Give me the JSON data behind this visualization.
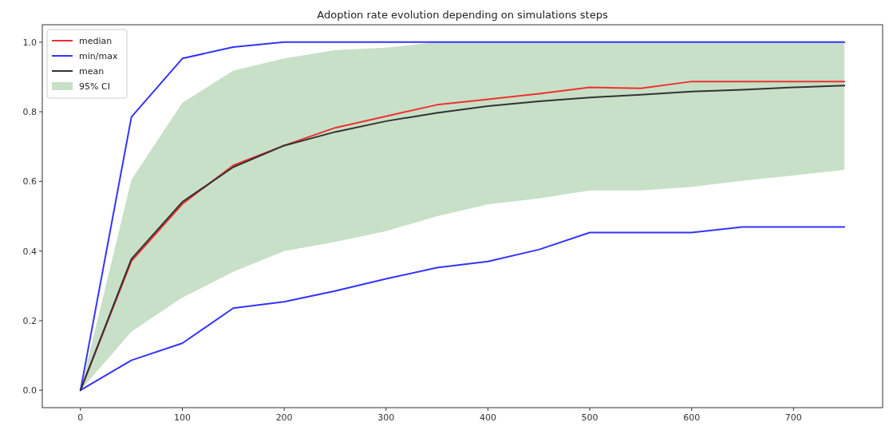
{
  "chart_data": {
    "type": "line",
    "title": "Adoption rate evolution depending on simulations steps",
    "x": [
      0,
      50,
      100,
      150,
      200,
      250,
      300,
      350,
      400,
      450,
      500,
      550,
      600,
      650,
      700,
      750
    ],
    "series": [
      {
        "name": "median",
        "color": "#f03030",
        "values": [
          0,
          0.371,
          0.535,
          0.646,
          0.703,
          0.754,
          0.787,
          0.82,
          0.836,
          0.852,
          0.87,
          0.867,
          0.887,
          0.887,
          0.887,
          0.887
        ]
      },
      {
        "name": "min/max",
        "color": "#3333ff",
        "values": [
          0,
          0.785,
          0.953,
          0.986,
          1.0,
          1.0,
          1.0,
          1.0,
          1.0,
          1.0,
          1.0,
          1.0,
          1.0,
          1.0,
          1.0,
          1.0
        ]
      },
      {
        "color": "#3333ff",
        "values": [
          0,
          0.086,
          0.135,
          0.236,
          0.254,
          0.285,
          0.32,
          0.352,
          0.37,
          0.404,
          0.453,
          0.453,
          0.453,
          0.469,
          0.469,
          0.469
        ]
      },
      {
        "name": "mean",
        "color": "#333333",
        "values": [
          0,
          0.377,
          0.541,
          0.641,
          0.703,
          0.742,
          0.773,
          0.797,
          0.816,
          0.83,
          0.841,
          0.849,
          0.858,
          0.863,
          0.87,
          0.875
        ],
        "lower": [
          0,
          0.168,
          0.266,
          0.34,
          0.4,
          0.426,
          0.457,
          0.5,
          0.534,
          0.551,
          0.574,
          0.574,
          0.584,
          0.602,
          0.617,
          0.633
        ],
        "upper": [
          0,
          0.605,
          0.826,
          0.918,
          0.953,
          0.977,
          0.984,
          1.0,
          1.0,
          1.0,
          1.0,
          1.0,
          1.0,
          1.0,
          1.0,
          1.0
        ]
      }
    ],
    "annotations": [
      "95% CI"
    ],
    "xlim": [
      -37.5,
      787.5
    ],
    "xticks": [
      0,
      100,
      200,
      300,
      400,
      500,
      600,
      700
    ],
    "ylim": [
      -0.05,
      1.05
    ],
    "yticks": [
      {
        "value": 0,
        "label": "0.0"
      },
      {
        "value": 0.2,
        "label": "0.2"
      },
      {
        "value": 0.4,
        "label": "0.4"
      },
      {
        "value": 0.6,
        "label": "0.6"
      },
      {
        "value": 0.8,
        "label": "0.8"
      },
      {
        "value": 1,
        "label": "1.0"
      }
    ],
    "grid": false,
    "legend": "top left",
    "marker": "none",
    "line_style": "solid"
  }
}
